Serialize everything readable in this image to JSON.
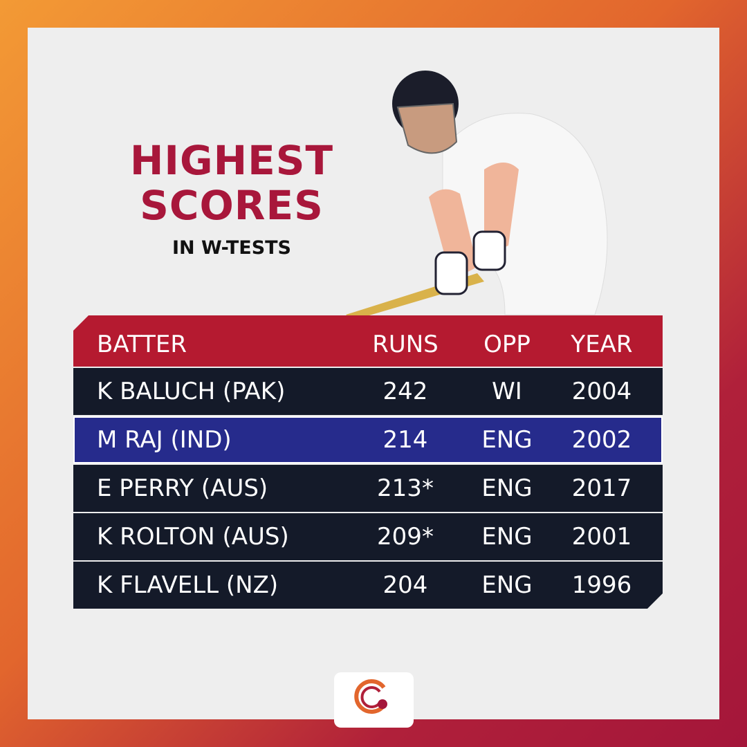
{
  "header": {
    "title_line1": "HIGHEST",
    "title_line2": "SCORES",
    "subtitle": "IN W-TESTS"
  },
  "table": {
    "columns": [
      "BATTER",
      "RUNS",
      "OPP",
      "YEAR"
    ],
    "rows": [
      [
        "K BALUCH (PAK)",
        "242",
        "WI",
        "2004"
      ],
      [
        "M RAJ (IND)",
        "214",
        "ENG",
        "2002"
      ],
      [
        "E PERRY (AUS)",
        "213*",
        "ENG",
        "2017"
      ],
      [
        "K ROLTON (AUS)",
        "209*",
        "ENG",
        "2001"
      ],
      [
        "K FLAVELL (NZ)",
        "204",
        "ENG",
        "1996"
      ]
    ]
  }
}
